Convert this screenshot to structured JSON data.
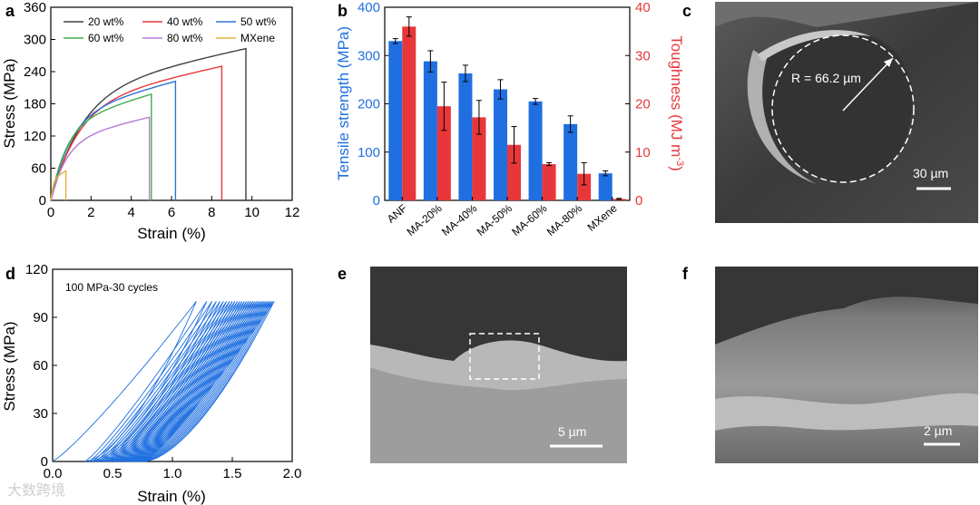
{
  "panels": {
    "a": "a",
    "b": "b",
    "c": "c",
    "d": "d",
    "e": "e",
    "f": "f"
  },
  "colors": {
    "series_20": "#404040",
    "series_40": "#e8373a",
    "series_50": "#2a74d8",
    "series_60": "#3fae4b",
    "series_80": "#b57bd6",
    "series_mx": "#e6b23a",
    "blue": "#1f6fe0",
    "red": "#e8373a"
  },
  "chart_data": [
    {
      "id": "a",
      "type": "line",
      "xlabel": "Strain (%)",
      "ylabel": "Stress (MPa)",
      "xlim": [
        0,
        12
      ],
      "ylim": [
        0,
        360
      ],
      "xticks": [
        "0",
        "2",
        "4",
        "6",
        "8",
        "10",
        "12"
      ],
      "yticks": [
        "0",
        "60",
        "120",
        "180",
        "240",
        "300",
        "360"
      ],
      "series": [
        {
          "name": "20 wt%",
          "break_strain": 9.7,
          "max_stress": 283
        },
        {
          "name": "40 wt%",
          "break_strain": 8.5,
          "max_stress": 250
        },
        {
          "name": "50 wt%",
          "break_strain": 6.2,
          "max_stress": 222
        },
        {
          "name": "60 wt%",
          "break_strain": 5.0,
          "max_stress": 198
        },
        {
          "name": "80 wt%",
          "break_strain": 4.9,
          "max_stress": 155
        },
        {
          "name": "MXene",
          "break_strain": 0.75,
          "max_stress": 55
        }
      ]
    },
    {
      "id": "b",
      "type": "bar",
      "categories": [
        "ANF",
        "MA-20%",
        "MA-40%",
        "MA-50%",
        "MA-60%",
        "MA-80%",
        "MXene"
      ],
      "ylabel_left": "Tensile strength (MPa)",
      "ylabel_right_main": "Toughness (MJ m",
      "ylabel_right_sup": "-3",
      "ylabel_right_close": ")",
      "ylim_left": [
        0,
        400
      ],
      "ylim_right": [
        0,
        40
      ],
      "yticks_left": [
        "0",
        "100",
        "200",
        "300",
        "400"
      ],
      "yticks_right": [
        "0",
        "10",
        "20",
        "30",
        "40"
      ],
      "series": [
        {
          "name": "Tensile strength",
          "axis": "left",
          "values": [
            330,
            288,
            263,
            230,
            205,
            158,
            56
          ],
          "errors": [
            5,
            22,
            17,
            20,
            6,
            17,
            5
          ]
        },
        {
          "name": "Toughness",
          "axis": "right",
          "values": [
            36,
            19.5,
            17.2,
            11.5,
            7.5,
            5.5,
            0.3
          ],
          "errors": [
            2,
            5,
            3.5,
            3.8,
            0.3,
            2.3,
            0.1
          ]
        }
      ]
    },
    {
      "id": "d",
      "type": "line",
      "title": "100 MPa-30 cycles",
      "xlabel": "Strain (%)",
      "ylabel": "Stress (MPa)",
      "xlim": [
        0,
        2.0
      ],
      "ylim": [
        0,
        120
      ],
      "xticks": [
        "0.0",
        "0.5",
        "1.0",
        "1.5",
        "2.0"
      ],
      "yticks": [
        "0",
        "30",
        "60",
        "90",
        "120"
      ],
      "cycles": 30,
      "peak_stress": 100,
      "first_max_strain": 1.2,
      "last_max_strain": 1.85
    }
  ],
  "images": {
    "c": {
      "annotation": "R = 66.2 µm",
      "scale": "30 µm"
    },
    "e": {
      "scale": "5 µm"
    },
    "f": {
      "scale": "2 µm"
    }
  },
  "watermark": "大数跨境"
}
